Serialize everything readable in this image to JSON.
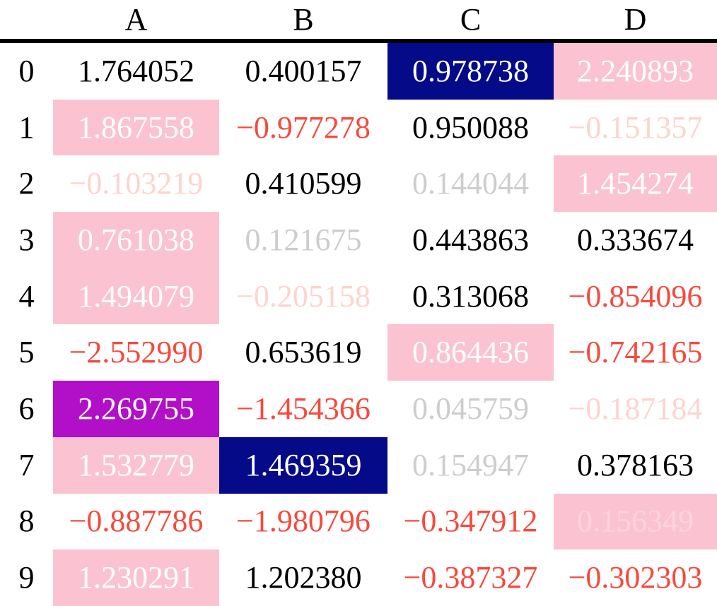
{
  "table": {
    "columns": [
      "A",
      "B",
      "C",
      "D"
    ],
    "rows": [
      {
        "index": "0",
        "cells": [
          {
            "value": "1.764052",
            "style": "normal"
          },
          {
            "value": "0.400157",
            "style": "normal"
          },
          {
            "value": "0.978738",
            "style": "colmax"
          },
          {
            "value": "2.240893",
            "style": "rowmax"
          }
        ]
      },
      {
        "index": "1",
        "cells": [
          {
            "value": "1.867558",
            "style": "rowmax"
          },
          {
            "value": "−0.977278",
            "style": "negative"
          },
          {
            "value": "0.950088",
            "style": "normal"
          },
          {
            "value": "−0.151357",
            "style": "negative faint"
          }
        ]
      },
      {
        "index": "2",
        "cells": [
          {
            "value": "−0.103219",
            "style": "negative faint"
          },
          {
            "value": "0.410599",
            "style": "normal"
          },
          {
            "value": "0.144044",
            "style": "faint"
          },
          {
            "value": "1.454274",
            "style": "rowmax"
          }
        ]
      },
      {
        "index": "3",
        "cells": [
          {
            "value": "0.761038",
            "style": "rowmax"
          },
          {
            "value": "0.121675",
            "style": "faint"
          },
          {
            "value": "0.443863",
            "style": "normal"
          },
          {
            "value": "0.333674",
            "style": "normal"
          }
        ]
      },
      {
        "index": "4",
        "cells": [
          {
            "value": "1.494079",
            "style": "rowmax"
          },
          {
            "value": "−0.205158",
            "style": "negative faint"
          },
          {
            "value": "0.313068",
            "style": "normal"
          },
          {
            "value": "−0.854096",
            "style": "negative"
          }
        ]
      },
      {
        "index": "5",
        "cells": [
          {
            "value": "−2.552990",
            "style": "negative"
          },
          {
            "value": "0.653619",
            "style": "normal"
          },
          {
            "value": "0.864436",
            "style": "rowmax"
          },
          {
            "value": "−0.742165",
            "style": "negative"
          }
        ]
      },
      {
        "index": "6",
        "cells": [
          {
            "value": "2.269755",
            "style": "tablemax"
          },
          {
            "value": "−1.454366",
            "style": "negative"
          },
          {
            "value": "0.045759",
            "style": "faint"
          },
          {
            "value": "−0.187184",
            "style": "negative faint"
          }
        ]
      },
      {
        "index": "7",
        "cells": [
          {
            "value": "1.532779",
            "style": "rowmax"
          },
          {
            "value": "1.469359",
            "style": "colmax"
          },
          {
            "value": "0.154947",
            "style": "faint"
          },
          {
            "value": "0.378163",
            "style": "normal"
          }
        ]
      },
      {
        "index": "8",
        "cells": [
          {
            "value": "−0.887786",
            "style": "negative"
          },
          {
            "value": "−1.980796",
            "style": "negative"
          },
          {
            "value": "−0.347912",
            "style": "negative"
          },
          {
            "value": "0.156349",
            "style": "rowmax faint"
          }
        ]
      },
      {
        "index": "9",
        "cells": [
          {
            "value": "1.230291",
            "style": "rowmax"
          },
          {
            "value": "1.202380",
            "style": "normal"
          },
          {
            "value": "−0.387327",
            "style": "negative"
          },
          {
            "value": "−0.302303",
            "style": "negative"
          }
        ]
      }
    ]
  },
  "colors": {
    "normal_text": "#000000",
    "negative_text": "#F8493C",
    "faint_black_text": "#CDCDCD",
    "faint_red_text": "#FDD4D0",
    "faint_white_on_pink_text": "#FCD3DE",
    "max_text": "#FFFFFF",
    "row_max_bg": "#FBC3D1",
    "col_max_bg": "#050A88",
    "table_max_bg": "#B10FC8",
    "rule_color": "#000000"
  },
  "chart_data": {
    "type": "table",
    "columns": [
      "A",
      "B",
      "C",
      "D"
    ],
    "index": [
      0,
      1,
      2,
      3,
      4,
      5,
      6,
      7,
      8,
      9
    ],
    "values": [
      [
        1.764052,
        0.400157,
        0.978738,
        2.240893
      ],
      [
        1.867558,
        -0.977278,
        0.950088,
        -0.151357
      ],
      [
        -0.103219,
        0.410599,
        0.144044,
        1.454274
      ],
      [
        0.761038,
        0.121675,
        0.443863,
        0.333674
      ],
      [
        1.494079,
        -0.205158,
        0.313068,
        -0.854096
      ],
      [
        -2.55299,
        0.653619,
        0.864436,
        -0.742165
      ],
      [
        2.269755,
        -1.454366,
        0.045759,
        -0.187184
      ],
      [
        1.532779,
        1.469359,
        0.154947,
        0.378163
      ],
      [
        -0.887786,
        -1.980796,
        -0.347912,
        0.156349
      ],
      [
        1.230291,
        1.20238,
        -0.387327,
        -0.302303
      ]
    ],
    "style_rules": {
      "negative_value": "red text",
      "abs_value_below_0.3": "20% opacity (faint)",
      "row_maximum": "pink background, white text",
      "column_maximum": "dark blue background, white text",
      "table_maximum": "purple background, white text"
    },
    "title": "",
    "grid": false,
    "legend": false
  }
}
